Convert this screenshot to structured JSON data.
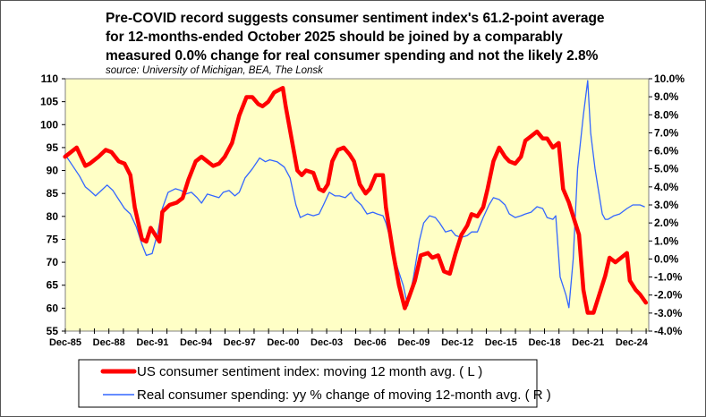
{
  "chart_data": {
    "type": "line",
    "title_lines": [
      "Pre-COVID record suggests consumer sentiment index's 61.2-point average",
      "for 12-months-ended October 2025 should be joined by a comparably",
      "measured 0.0% change for real consumer spending and not the likely 2.8%"
    ],
    "source": "source: University of Michigan, BEA, The Lonsk",
    "xlim": [
      1985.92,
      2026.1
    ],
    "x_tick_labels": [
      "Dec-85",
      "Dec-88",
      "Dec-91",
      "Dec-94",
      "Dec-97",
      "Dec-00",
      "Dec-03",
      "Dec-06",
      "Dec-09",
      "Dec-12",
      "Dec-15",
      "Dec-18",
      "Dec-21",
      "Dec-24"
    ],
    "left_axis": {
      "ylim": [
        55,
        110
      ],
      "tick_labels": [
        "55",
        "60",
        "65",
        "70",
        "75",
        "80",
        "85",
        "90",
        "95",
        "100",
        "105",
        "110"
      ]
    },
    "right_axis": {
      "ylim": [
        -4,
        10
      ],
      "tick_labels": [
        "-4.0%",
        "-3.0%",
        "-2.0%",
        "-1.0%",
        "0.0%",
        "1.0%",
        "2.0%",
        "3.0%",
        "4.0%",
        "5.0%",
        "6.0%",
        "7.0%",
        "8.0%",
        "9.0%",
        "10.0%"
      ]
    },
    "background_color": "#FFFFC6",
    "series": [
      {
        "name": "US consumer sentiment index: moving 12 month avg. ( L )",
        "axis": "left",
        "color": "#FF0000",
        "x": [
          1985.9,
          1986.7,
          1987.0,
          1987.3,
          1987.6,
          1988.2,
          1988.7,
          1989.1,
          1989.6,
          1990.0,
          1990.4,
          1990.7,
          1991.2,
          1991.5,
          1991.8,
          1992.1,
          1992.4,
          1992.6,
          1993.1,
          1993.6,
          1994.0,
          1994.4,
          1994.9,
          1995.3,
          1995.7,
          1996.1,
          1996.5,
          1996.9,
          1997.4,
          1997.9,
          1998.4,
          1998.8,
          1999.2,
          1999.5,
          1999.9,
          2000.3,
          2000.9,
          2001.1,
          2001.5,
          2001.9,
          2002.2,
          2002.5,
          2003.0,
          2003.4,
          2003.7,
          2004.0,
          2004.3,
          2004.7,
          2005.1,
          2005.5,
          2005.8,
          2006.2,
          2006.6,
          2006.9,
          2007.3,
          2007.8,
          2008.0,
          2008.5,
          2008.9,
          2009.3,
          2009.6,
          2010.0,
          2010.4,
          2010.9,
          2011.2,
          2011.6,
          2012.0,
          2012.4,
          2012.8,
          2013.2,
          2013.6,
          2013.9,
          2014.3,
          2014.7,
          2015.0,
          2015.4,
          2015.8,
          2016.2,
          2016.5,
          2016.9,
          2017.3,
          2017.6,
          2018.0,
          2018.4,
          2018.8,
          2019.1,
          2019.5,
          2019.9,
          2020.2,
          2020.6,
          2021.0,
          2021.3,
          2021.6,
          2021.9,
          2022.3,
          2022.7,
          2023.1,
          2023.4,
          2023.8,
          2024.2,
          2024.6,
          2024.8,
          2025.2,
          2025.5,
          2025.9
        ],
        "y": [
          93,
          95,
          93,
          91,
          91.5,
          93,
          94.5,
          94,
          92,
          91.5,
          89,
          82,
          75,
          74.5,
          77.5,
          76,
          74.5,
          81,
          82.5,
          83,
          84,
          88,
          92,
          93,
          92,
          91,
          91.5,
          93,
          96,
          102,
          106,
          106,
          104.5,
          104,
          105,
          107,
          108,
          104,
          97,
          90,
          89,
          90,
          89.5,
          86,
          85.5,
          87,
          92,
          94.5,
          95,
          93.5,
          92,
          87,
          85,
          86,
          89,
          89,
          82,
          72,
          65,
          60,
          62.5,
          66,
          71.5,
          72,
          71,
          71.5,
          68,
          67.5,
          72,
          76,
          78,
          80.5,
          80,
          82,
          86,
          92,
          95,
          93,
          92,
          91.5,
          93,
          96.5,
          97.5,
          98.5,
          97,
          97,
          95,
          96,
          86,
          83,
          79,
          76,
          64,
          59,
          59,
          63,
          67,
          71,
          70,
          71,
          72,
          66,
          64,
          63,
          61.2
        ]
      },
      {
        "name": "Real consumer spending: yy % change of moving 12-month avg. ( R )",
        "axis": "right",
        "color": "#3366FF",
        "x": [
          1985.9,
          1986.4,
          1986.9,
          1987.3,
          1987.6,
          1988.0,
          1988.4,
          1988.8,
          1989.2,
          1989.6,
          1990.0,
          1990.4,
          1990.8,
          1991.2,
          1991.5,
          1991.9,
          1992.3,
          1992.6,
          1993.0,
          1993.5,
          1993.9,
          1994.2,
          1994.6,
          1995.0,
          1995.3,
          1995.7,
          1996.1,
          1996.5,
          1996.8,
          1997.2,
          1997.6,
          1997.9,
          1998.3,
          1998.8,
          1999.3,
          1999.7,
          2000.0,
          2000.5,
          2001.0,
          2001.4,
          2001.8,
          2002.1,
          2002.6,
          2003.0,
          2003.4,
          2003.7,
          2004.1,
          2004.5,
          2004.8,
          2005.2,
          2005.6,
          2005.9,
          2006.3,
          2006.7,
          2007.1,
          2007.4,
          2007.8,
          2008.0,
          2008.4,
          2008.8,
          2009.2,
          2009.5,
          2009.9,
          2010.3,
          2010.6,
          2011.0,
          2011.4,
          2011.7,
          2012.1,
          2012.5,
          2012.8,
          2013.2,
          2013.6,
          2013.9,
          2014.3,
          2014.7,
          2015.1,
          2015.4,
          2015.8,
          2016.2,
          2016.5,
          2016.9,
          2017.3,
          2017.6,
          2018.0,
          2018.4,
          2018.8,
          2019.1,
          2019.5,
          2019.7,
          2020.0,
          2020.4,
          2020.6,
          2020.9,
          2021.2,
          2021.6,
          2021.9,
          2022.1,
          2022.4,
          2022.6,
          2022.9,
          2023.1,
          2023.3,
          2023.7,
          2024.1,
          2024.6,
          2025.0,
          2025.5,
          2025.8
        ],
        "y": [
          5.8,
          5.2,
          4.6,
          4.0,
          3.8,
          3.5,
          3.8,
          4.1,
          3.8,
          3.3,
          2.8,
          2.5,
          1.8,
          0.8,
          0.2,
          0.3,
          1.5,
          2.8,
          3.7,
          3.9,
          3.8,
          3.6,
          3.7,
          3.4,
          3.1,
          3.6,
          3.5,
          3.4,
          3.7,
          3.8,
          3.5,
          3.7,
          4.5,
          5.0,
          5.6,
          5.4,
          5.5,
          5.4,
          5.1,
          4.5,
          3.0,
          2.3,
          2.5,
          2.4,
          2.5,
          3.0,
          3.7,
          3.5,
          3.5,
          3.4,
          3.7,
          3.3,
          3.0,
          2.5,
          2.6,
          2.5,
          2.4,
          2.0,
          0.8,
          -0.5,
          -1.5,
          -2.6,
          -1.0,
          1.0,
          2.0,
          2.4,
          2.3,
          2.0,
          1.5,
          1.6,
          1.3,
          1.2,
          1.3,
          1.5,
          1.5,
          2.3,
          3.0,
          3.4,
          3.3,
          3.0,
          2.5,
          2.3,
          2.4,
          2.5,
          2.6,
          2.9,
          2.8,
          2.3,
          2.2,
          2.4,
          -1.0,
          -2.0,
          -2.7,
          0.0,
          5.0,
          8.0,
          9.9,
          7.0,
          5.0,
          4.0,
          2.5,
          2.2,
          2.2,
          2.4,
          2.5,
          2.8,
          3.0,
          3.0,
          2.9
        ]
      }
    ]
  }
}
